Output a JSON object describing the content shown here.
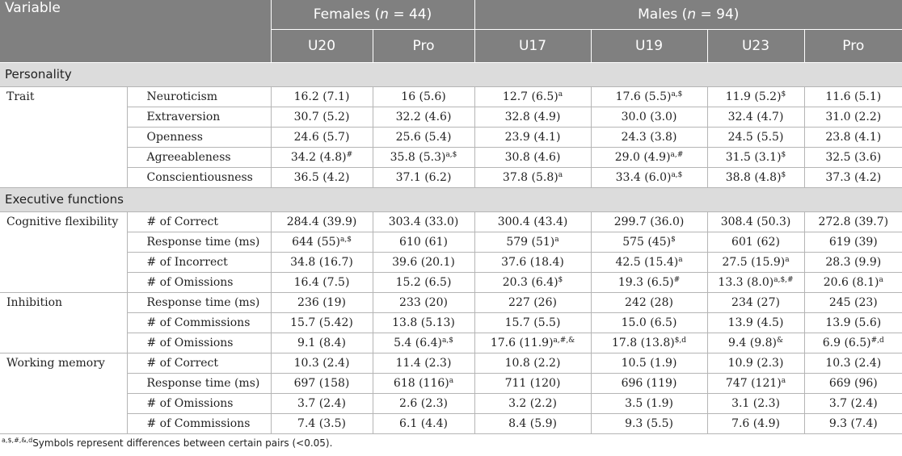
{
  "header": {
    "variable": "Variable",
    "females_pre": "Females (",
    "females_n": "n",
    "females_post": " = 44)",
    "males_pre": "Males (",
    "males_n": "n",
    "males_post": " = 94)",
    "columns": [
      "U20",
      "Pro",
      "U17",
      "U19",
      "U23",
      "Pro"
    ]
  },
  "groups": [
    {
      "title": "Personality",
      "categories": [
        {
          "name": "Trait",
          "rows": [
            {
              "label": "Neuroticism",
              "cells": [
                {
                  "v": "16.2 (7.1)",
                  "s": ""
                },
                {
                  "v": "16 (5.6)",
                  "s": ""
                },
                {
                  "v": "12.7 (6.5)",
                  "s": "a"
                },
                {
                  "v": "17.6 (5.5)",
                  "s": "a,$"
                },
                {
                  "v": "11.9 (5.2)",
                  "s": "$"
                },
                {
                  "v": "11.6 (5.1)",
                  "s": ""
                }
              ]
            },
            {
              "label": "Extraversion",
              "cells": [
                {
                  "v": "30.7 (5.2)",
                  "s": ""
                },
                {
                  "v": "32.2 (4.6)",
                  "s": ""
                },
                {
                  "v": "32.8 (4.9)",
                  "s": ""
                },
                {
                  "v": "30.0 (3.0)",
                  "s": ""
                },
                {
                  "v": "32.4 (4.7)",
                  "s": ""
                },
                {
                  "v": "31.0 (2.2)",
                  "s": ""
                }
              ]
            },
            {
              "label": "Openness",
              "cells": [
                {
                  "v": "24.6 (5.7)",
                  "s": ""
                },
                {
                  "v": "25.6 (5.4)",
                  "s": ""
                },
                {
                  "v": "23.9 (4.1)",
                  "s": ""
                },
                {
                  "v": "24.3 (3.8)",
                  "s": ""
                },
                {
                  "v": "24.5 (5.5)",
                  "s": ""
                },
                {
                  "v": "23.8 (4.1)",
                  "s": ""
                }
              ]
            },
            {
              "label": "Agreeableness",
              "cells": [
                {
                  "v": "34.2 (4.8)",
                  "s": "#"
                },
                {
                  "v": "35.8 (5.3)",
                  "s": "a,$"
                },
                {
                  "v": "30.8 (4.6)",
                  "s": ""
                },
                {
                  "v": "29.0 (4.9)",
                  "s": "a,#"
                },
                {
                  "v": "31.5 (3.1)",
                  "s": "$"
                },
                {
                  "v": "32.5 (3.6)",
                  "s": ""
                }
              ]
            },
            {
              "label": "Conscientiousness",
              "cells": [
                {
                  "v": "36.5 (4.2)",
                  "s": ""
                },
                {
                  "v": "37.1 (6.2)",
                  "s": ""
                },
                {
                  "v": "37.8 (5.8)",
                  "s": "a"
                },
                {
                  "v": "33.4 (6.0)",
                  "s": "a,$"
                },
                {
                  "v": "38.8 (4.8)",
                  "s": "$"
                },
                {
                  "v": "37.3 (4.2)",
                  "s": ""
                }
              ]
            }
          ]
        }
      ]
    },
    {
      "title": "Executive functions",
      "categories": [
        {
          "name": "Cognitive flexibility",
          "rows": [
            {
              "label": "# of Correct",
              "cells": [
                {
                  "v": "284.4 (39.9)",
                  "s": ""
                },
                {
                  "v": "303.4 (33.0)",
                  "s": ""
                },
                {
                  "v": "300.4 (43.4)",
                  "s": ""
                },
                {
                  "v": "299.7 (36.0)",
                  "s": ""
                },
                {
                  "v": "308.4 (50.3)",
                  "s": ""
                },
                {
                  "v": "272.8 (39.7)",
                  "s": ""
                }
              ]
            },
            {
              "label": "Response time (ms)",
              "cells": [
                {
                  "v": "644 (55)",
                  "s": "a,$"
                },
                {
                  "v": "610 (61)",
                  "s": ""
                },
                {
                  "v": "579 (51)",
                  "s": "a"
                },
                {
                  "v": "575 (45)",
                  "s": "$"
                },
                {
                  "v": "601 (62)",
                  "s": ""
                },
                {
                  "v": "619 (39)",
                  "s": ""
                }
              ]
            },
            {
              "label": "# of Incorrect",
              "cells": [
                {
                  "v": "34.8 (16.7)",
                  "s": ""
                },
                {
                  "v": "39.6 (20.1)",
                  "s": ""
                },
                {
                  "v": "37.6 (18.4)",
                  "s": ""
                },
                {
                  "v": "42.5 (15.4)",
                  "s": "a"
                },
                {
                  "v": "27.5 (15.9)",
                  "s": "a"
                },
                {
                  "v": "28.3 (9.9)",
                  "s": ""
                }
              ]
            },
            {
              "label": "# of Omissions",
              "cells": [
                {
                  "v": "16.4 (7.5)",
                  "s": ""
                },
                {
                  "v": "15.2 (6.5)",
                  "s": ""
                },
                {
                  "v": "20.3 (6.4)",
                  "s": "$"
                },
                {
                  "v": "19.3 (6.5)",
                  "s": "#"
                },
                {
                  "v": "13.3 (8.0)",
                  "s": "a,$,#"
                },
                {
                  "v": "20.6 (8.1)",
                  "s": "a"
                }
              ]
            }
          ]
        },
        {
          "name": "Inhibition",
          "rows": [
            {
              "label": "Response time (ms)",
              "cells": [
                {
                  "v": "236 (19)",
                  "s": ""
                },
                {
                  "v": "233 (20)",
                  "s": ""
                },
                {
                  "v": "227 (26)",
                  "s": ""
                },
                {
                  "v": "242 (28)",
                  "s": ""
                },
                {
                  "v": "234 (27)",
                  "s": ""
                },
                {
                  "v": "245 (23)",
                  "s": ""
                }
              ]
            },
            {
              "label": "# of Commissions",
              "cells": [
                {
                  "v": "15.7 (5.42)",
                  "s": ""
                },
                {
                  "v": "13.8 (5.13)",
                  "s": ""
                },
                {
                  "v": "15.7 (5.5)",
                  "s": ""
                },
                {
                  "v": "15.0 (6.5)",
                  "s": ""
                },
                {
                  "v": "13.9 (4.5)",
                  "s": ""
                },
                {
                  "v": "13.9 (5.6)",
                  "s": ""
                }
              ]
            },
            {
              "label": "# of Omissions",
              "cells": [
                {
                  "v": "9.1 (8.4)",
                  "s": ""
                },
                {
                  "v": "5.4 (6.4)",
                  "s": "a,$"
                },
                {
                  "v": "17.6 (11.9)",
                  "s": "a,#,&"
                },
                {
                  "v": "17.8 (13.8)",
                  "s": "$,d"
                },
                {
                  "v": "9.4 (9.8)",
                  "s": "&"
                },
                {
                  "v": "6.9 (6.5)",
                  "s": "#,d"
                }
              ]
            }
          ]
        },
        {
          "name": "Working memory",
          "rows": [
            {
              "label": "# of Correct",
              "cells": [
                {
                  "v": "10.3 (2.4)",
                  "s": ""
                },
                {
                  "v": "11.4 (2.3)",
                  "s": ""
                },
                {
                  "v": "10.8 (2.2)",
                  "s": ""
                },
                {
                  "v": "10.5 (1.9)",
                  "s": ""
                },
                {
                  "v": "10.9 (2.3)",
                  "s": ""
                },
                {
                  "v": "10.3 (2.4)",
                  "s": ""
                }
              ]
            },
            {
              "label": "Response time (ms)",
              "cells": [
                {
                  "v": "697 (158)",
                  "s": ""
                },
                {
                  "v": "618 (116)",
                  "s": "a"
                },
                {
                  "v": "711 (120)",
                  "s": ""
                },
                {
                  "v": "696 (119)",
                  "s": ""
                },
                {
                  "v": "747 (121)",
                  "s": "a"
                },
                {
                  "v": "669 (96)",
                  "s": ""
                }
              ]
            },
            {
              "label": "# of Omissions",
              "cells": [
                {
                  "v": "3.7 (2.4)",
                  "s": ""
                },
                {
                  "v": "2.6 (2.3)",
                  "s": ""
                },
                {
                  "v": "3.2 (2.2)",
                  "s": ""
                },
                {
                  "v": "3.5 (1.9)",
                  "s": ""
                },
                {
                  "v": "3.1 (2.3)",
                  "s": ""
                },
                {
                  "v": "3.7 (2.4)",
                  "s": ""
                }
              ]
            },
            {
              "label": "# of Commissions",
              "cells": [
                {
                  "v": "7.4 (3.5)",
                  "s": ""
                },
                {
                  "v": "6.1 (4.4)",
                  "s": ""
                },
                {
                  "v": "8.4 (5.9)",
                  "s": ""
                },
                {
                  "v": "9.3 (5.5)",
                  "s": ""
                },
                {
                  "v": "7.6 (4.9)",
                  "s": ""
                },
                {
                  "v": "9.3 (7.4)",
                  "s": ""
                }
              ]
            }
          ]
        }
      ]
    }
  ],
  "footnote": {
    "symbols": "a,$,#,&,d",
    "text": "Symbols represent differences between certain pairs (<0.05)."
  }
}
